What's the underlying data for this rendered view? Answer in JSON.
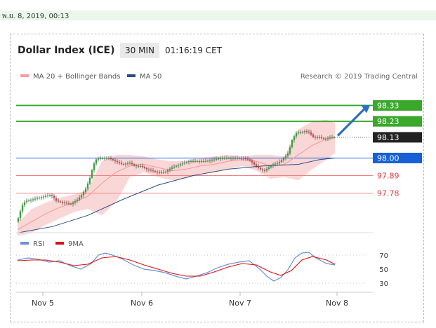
{
  "header": {
    "datetime": "พ.ย. 8, 2019, 00:13",
    "title": "Dollar Index (ICE)",
    "timeframe": "30 MIN",
    "clock": "01:16:19 CET"
  },
  "legend": {
    "ma20": "MA 20 + Bollinger Bands",
    "ma50": "MA 50",
    "credit": "Research © 2019 Trading Central",
    "rsi": "RSI",
    "ma9": "9MA"
  },
  "colors": {
    "green": "#3aa82b",
    "blue": "#1560d4",
    "red_level": "#f08080",
    "dark": "#222222",
    "ma20": "#f4a0a0",
    "band_fill": "#f8c9c9",
    "ma50": "#2d4f86",
    "candle_up": "#38a538",
    "candle_down": "#e04040",
    "rsi_line": "#6a8fd8",
    "ma9_line": "#e01010",
    "arrow": "#2d6fc0"
  },
  "chart_data": [
    {
      "type": "candlestick",
      "title": "Dollar Index (ICE)",
      "timeframe": "30 MIN",
      "x_labels": [
        "Nov 5",
        "Nov 6",
        "Nov 7",
        "Nov 8"
      ],
      "ylim": [
        97.54,
        98.42
      ],
      "levels": [
        {
          "value": 98.33,
          "label": "98.33",
          "kind": "resistance",
          "color": "#3aa82b"
        },
        {
          "value": 98.23,
          "label": "98.23",
          "kind": "resistance",
          "color": "#3aa82b"
        },
        {
          "value": 98.13,
          "label": "98.13",
          "kind": "last",
          "color": "#222222"
        },
        {
          "value": 98.0,
          "label": "98.00",
          "kind": "pivot",
          "color": "#1560d4"
        },
        {
          "value": 97.89,
          "label": "97.89",
          "kind": "support",
          "color": "#e04040"
        },
        {
          "value": 97.78,
          "label": "97.78",
          "kind": "support",
          "color": "#e04040"
        }
      ],
      "price_series": [
        [
          0,
          97.6
        ],
        [
          4,
          97.66
        ],
        [
          8,
          97.71
        ],
        [
          12,
          97.73
        ],
        [
          22,
          97.74
        ],
        [
          30,
          97.75
        ],
        [
          40,
          97.76
        ],
        [
          48,
          97.77
        ],
        [
          56,
          97.73
        ],
        [
          66,
          97.72
        ],
        [
          76,
          97.71
        ],
        [
          86,
          97.74
        ],
        [
          92,
          97.77
        ],
        [
          98,
          97.81
        ],
        [
          104,
          97.88
        ],
        [
          108,
          97.95
        ],
        [
          112,
          97.99
        ],
        [
          120,
          98.0
        ],
        [
          130,
          98.0
        ],
        [
          140,
          97.98
        ],
        [
          150,
          97.96
        ],
        [
          160,
          97.97
        ],
        [
          168,
          97.95
        ],
        [
          176,
          97.95
        ],
        [
          184,
          97.93
        ],
        [
          192,
          97.92
        ],
        [
          200,
          97.91
        ],
        [
          210,
          97.91
        ],
        [
          220,
          97.94
        ],
        [
          232,
          97.96
        ],
        [
          244,
          97.98
        ],
        [
          256,
          97.98
        ],
        [
          268,
          97.98
        ],
        [
          280,
          97.99
        ],
        [
          290,
          98.0
        ],
        [
          300,
          98.0
        ],
        [
          310,
          98.0
        ],
        [
          320,
          98.0
        ],
        [
          330,
          97.99
        ],
        [
          340,
          97.95
        ],
        [
          346,
          97.93
        ],
        [
          352,
          97.92
        ],
        [
          358,
          97.94
        ],
        [
          364,
          97.96
        ],
        [
          372,
          97.97
        ],
        [
          380,
          98.0
        ],
        [
          386,
          98.03
        ],
        [
          392,
          98.12
        ],
        [
          398,
          98.16
        ],
        [
          404,
          98.16
        ],
        [
          410,
          98.17
        ],
        [
          416,
          98.16
        ],
        [
          422,
          98.13
        ],
        [
          430,
          98.13
        ],
        [
          438,
          98.12
        ],
        [
          446,
          98.13
        ],
        [
          452,
          98.13
        ]
      ],
      "ma20_series": [
        [
          0,
          97.55
        ],
        [
          20,
          97.6
        ],
        [
          40,
          97.65
        ],
        [
          60,
          97.69
        ],
        [
          80,
          97.72
        ],
        [
          100,
          97.76
        ],
        [
          120,
          97.84
        ],
        [
          140,
          97.91
        ],
        [
          160,
          97.95
        ],
        [
          180,
          97.96
        ],
        [
          200,
          97.94
        ],
        [
          220,
          97.92
        ],
        [
          240,
          97.93
        ],
        [
          260,
          97.95
        ],
        [
          280,
          97.96
        ],
        [
          300,
          97.98
        ],
        [
          320,
          97.99
        ],
        [
          340,
          97.98
        ],
        [
          360,
          97.95
        ],
        [
          380,
          97.96
        ],
        [
          400,
          98.02
        ],
        [
          420,
          98.08
        ],
        [
          440,
          98.12
        ],
        [
          452,
          98.13
        ]
      ],
      "upper_band": [
        [
          0,
          97.59
        ],
        [
          20,
          97.68
        ],
        [
          40,
          97.72
        ],
        [
          60,
          97.75
        ],
        [
          80,
          97.77
        ],
        [
          100,
          97.8
        ],
        [
          120,
          97.98
        ],
        [
          140,
          98.02
        ],
        [
          160,
          98.02
        ],
        [
          180,
          98.01
        ],
        [
          200,
          97.99
        ],
        [
          220,
          97.98
        ],
        [
          240,
          97.98
        ],
        [
          260,
          98.0
        ],
        [
          280,
          98.01
        ],
        [
          300,
          98.02
        ],
        [
          320,
          98.01
        ],
        [
          340,
          98.02
        ],
        [
          360,
          98.02
        ],
        [
          380,
          98.01
        ],
        [
          400,
          98.18
        ],
        [
          420,
          98.23
        ],
        [
          440,
          98.24
        ],
        [
          452,
          98.22
        ]
      ],
      "lower_band": [
        [
          0,
          97.51
        ],
        [
          20,
          97.53
        ],
        [
          40,
          97.58
        ],
        [
          60,
          97.62
        ],
        [
          80,
          97.66
        ],
        [
          100,
          97.68
        ],
        [
          120,
          97.64
        ],
        [
          140,
          97.72
        ],
        [
          160,
          97.88
        ],
        [
          180,
          97.91
        ],
        [
          200,
          97.88
        ],
        [
          220,
          97.86
        ],
        [
          240,
          97.87
        ],
        [
          260,
          97.9
        ],
        [
          280,
          97.91
        ],
        [
          300,
          97.93
        ],
        [
          320,
          97.95
        ],
        [
          340,
          97.92
        ],
        [
          360,
          97.87
        ],
        [
          380,
          97.88
        ],
        [
          400,
          97.86
        ],
        [
          420,
          97.93
        ],
        [
          440,
          97.99
        ],
        [
          452,
          98.03
        ]
      ],
      "ma50_series": [
        [
          0,
          97.53
        ],
        [
          50,
          97.57
        ],
        [
          100,
          97.64
        ],
        [
          150,
          97.74
        ],
        [
          200,
          97.83
        ],
        [
          250,
          97.89
        ],
        [
          300,
          97.93
        ],
        [
          350,
          97.95
        ],
        [
          400,
          97.96
        ],
        [
          430,
          97.99
        ],
        [
          452,
          98.0
        ]
      ]
    },
    {
      "type": "line",
      "title": "RSI",
      "ylim": [
        25,
        80
      ],
      "ticks": [
        70,
        50,
        30
      ],
      "series": [
        {
          "name": "RSI",
          "color": "#6a8fd8",
          "points": [
            [
              0,
              63
            ],
            [
              15,
              66
            ],
            [
              30,
              64
            ],
            [
              45,
              60
            ],
            [
              60,
              62
            ],
            [
              75,
              55
            ],
            [
              90,
              50
            ],
            [
              105,
              58
            ],
            [
              115,
              70
            ],
            [
              125,
              73
            ],
            [
              135,
              70
            ],
            [
              150,
              64
            ],
            [
              165,
              56
            ],
            [
              180,
              50
            ],
            [
              195,
              48
            ],
            [
              210,
              45
            ],
            [
              225,
              40
            ],
            [
              240,
              36
            ],
            [
              255,
              40
            ],
            [
              270,
              45
            ],
            [
              285,
              52
            ],
            [
              300,
              57
            ],
            [
              315,
              60
            ],
            [
              330,
              62
            ],
            [
              345,
              50
            ],
            [
              355,
              40
            ],
            [
              365,
              33
            ],
            [
              375,
              38
            ],
            [
              385,
              49
            ],
            [
              395,
              66
            ],
            [
              405,
              73
            ],
            [
              415,
              74
            ],
            [
              425,
              66
            ],
            [
              440,
              58
            ],
            [
              452,
              56
            ]
          ]
        },
        {
          "name": "9MA",
          "color": "#e01010",
          "points": [
            [
              0,
              62
            ],
            [
              20,
              63
            ],
            [
              40,
              63
            ],
            [
              60,
              60
            ],
            [
              80,
              55
            ],
            [
              100,
              57
            ],
            [
              120,
              66
            ],
            [
              140,
              68
            ],
            [
              160,
              63
            ],
            [
              180,
              56
            ],
            [
              200,
              50
            ],
            [
              220,
              44
            ],
            [
              240,
              40
            ],
            [
              260,
              40
            ],
            [
              280,
              46
            ],
            [
              300,
              53
            ],
            [
              320,
              58
            ],
            [
              340,
              56
            ],
            [
              360,
              46
            ],
            [
              375,
              41
            ],
            [
              390,
              48
            ],
            [
              405,
              63
            ],
            [
              420,
              68
            ],
            [
              440,
              63
            ],
            [
              452,
              57
            ]
          ]
        }
      ]
    }
  ]
}
